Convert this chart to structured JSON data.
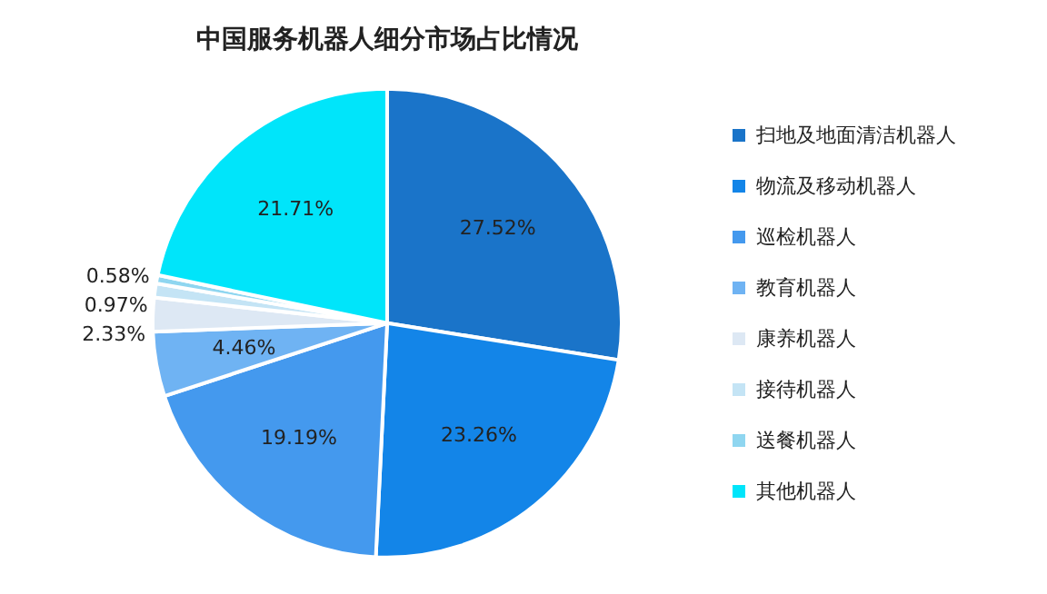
{
  "chart_data": {
    "type": "pie",
    "title": "中国服务机器人细分市场占比情况",
    "categories": [
      "扫地及地面清洁机器人",
      "物流及移动机器人",
      "巡检机器人",
      "教育机器人",
      "康养机器人",
      "接待机器人",
      "送餐机器人",
      "其他机器人"
    ],
    "values": [
      27.52,
      23.26,
      19.19,
      4.46,
      2.33,
      0.97,
      0.58,
      21.71
    ],
    "value_labels": [
      "27.52%",
      "23.26%",
      "19.19%",
      "4.46%",
      "2.33%",
      "0.97%",
      "0.58%",
      "21.71%"
    ],
    "colors": [
      "#1a74c9",
      "#1385e8",
      "#4499ee",
      "#6fb3f3",
      "#dde8f4",
      "#c4e4f5",
      "#8fd6f0",
      "#00e5fa"
    ],
    "legend": "right"
  }
}
